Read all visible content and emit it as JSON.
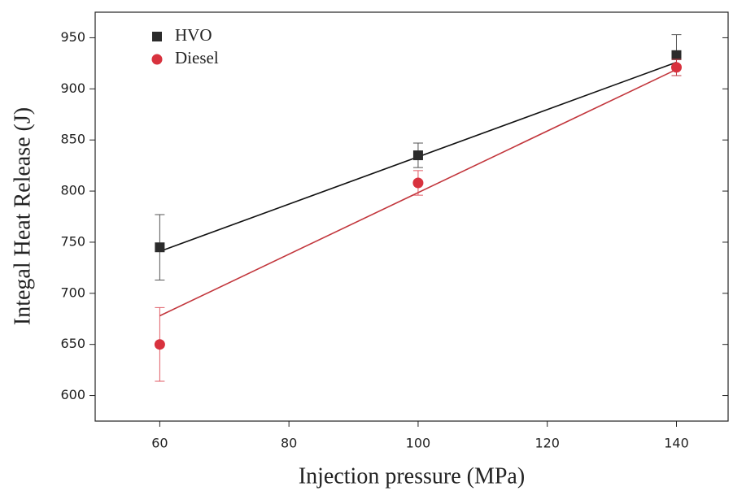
{
  "chart_data": {
    "type": "scatter",
    "xlabel": "Injection pressure (MPa)",
    "ylabel": "Integal Heat Release (J)",
    "xlim": [
      50,
      148
    ],
    "ylim": [
      575,
      975
    ],
    "xticks": [
      60,
      80,
      100,
      120,
      140
    ],
    "yticks": [
      600,
      650,
      700,
      750,
      800,
      850,
      900,
      950
    ],
    "legend": "top-left",
    "series": [
      {
        "name": "HVO",
        "color": "#2b2b2b",
        "marker": "square",
        "x": [
          60,
          100,
          140
        ],
        "values": [
          745,
          835,
          933
        ],
        "errors": [
          32,
          12,
          20
        ],
        "fit": {
          "color": "#111111",
          "x": [
            60,
            140
          ],
          "y": [
            741,
            926
          ]
        }
      },
      {
        "name": "Diesel",
        "color": "#d8323e",
        "marker": "circle",
        "x": [
          60,
          100,
          140
        ],
        "values": [
          650,
          808,
          921
        ],
        "errors": [
          36,
          12,
          8
        ],
        "fit": {
          "color": "#c2363c",
          "x": [
            60,
            140
          ],
          "y": [
            678,
            919
          ]
        }
      }
    ]
  }
}
